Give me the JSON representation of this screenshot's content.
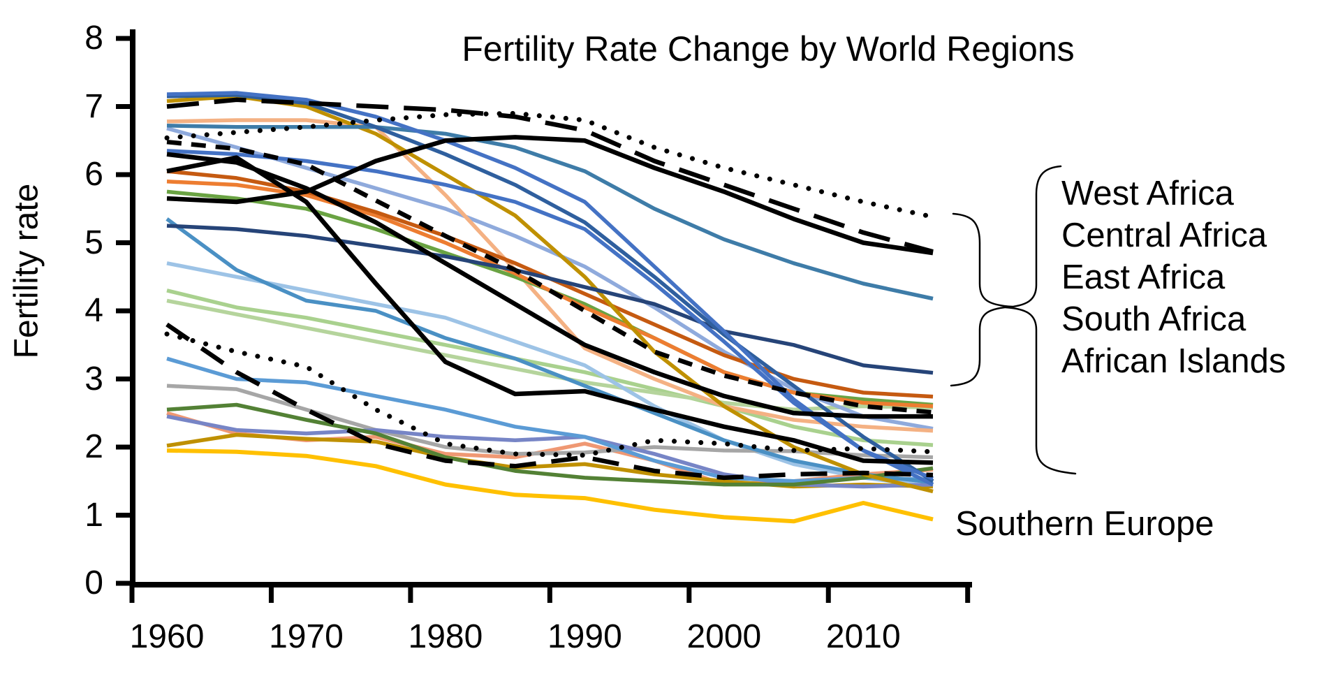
{
  "title": "Fertility Rate Change by World Regions",
  "y_axis": {
    "label": "Fertility rate",
    "tick_labels": [
      "0",
      "1",
      "2",
      "3",
      "4",
      "5",
      "6",
      "7",
      "8"
    ],
    "min": 0,
    "max": 8
  },
  "x_axis": {
    "tick_labels": [
      "1960",
      "1970",
      "1980",
      "1990",
      "2000",
      "2010"
    ]
  },
  "annotations": {
    "africa_group_labels": [
      "West Africa",
      "Central Africa",
      "East Africa",
      "South Africa",
      "African Islands"
    ],
    "southern_europe_label": "Southern Europe",
    "braces": "two facing curly braces link the highlighted black lines to the five Africa labels"
  },
  "chart_data": {
    "type": "line",
    "title": "Fertility Rate Change by World Regions",
    "xlabel": "",
    "ylabel": "Fertility rate",
    "ylim": [
      0,
      8
    ],
    "grid": false,
    "legend_position": "none",
    "x": [
      1960,
      1965,
      1970,
      1975,
      1980,
      1985,
      1990,
      1995,
      2000,
      2005,
      2010,
      2015
    ],
    "x_ticks_shown": [
      1960,
      1970,
      1980,
      1990,
      2000,
      2010
    ],
    "note": "Black lines (assorted dash patterns) are the African regions named by the brace callout; the yellow line is Southern Europe; other colored lines are unlabeled world regions.",
    "series": [
      {
        "id": "region-light-green",
        "color": "#A9D18E",
        "width": 5.5,
        "dash": null,
        "values": [
          4.3,
          4.05,
          3.9,
          3.7,
          3.5,
          3.3,
          3.1,
          2.85,
          2.6,
          2.3,
          2.1,
          2.03
        ]
      },
      {
        "id": "region-pale-green",
        "color": "#B5D49C",
        "width": 5.5,
        "dash": null,
        "values": [
          4.15,
          3.95,
          3.75,
          3.55,
          3.35,
          3.15,
          2.95,
          2.8,
          2.65,
          2.55,
          2.6,
          2.58
        ]
      },
      {
        "id": "region-light-blue",
        "color": "#9DC3E6",
        "width": 5.5,
        "dash": null,
        "values": [
          4.7,
          4.5,
          4.3,
          4.1,
          3.9,
          3.55,
          3.2,
          2.6,
          2.1,
          1.75,
          1.55,
          1.42
        ]
      },
      {
        "id": "region-periwinkle",
        "color": "#8FAADC",
        "width": 5.5,
        "dash": null,
        "values": [
          6.68,
          6.4,
          6.1,
          5.8,
          5.5,
          5.1,
          4.65,
          4.05,
          3.4,
          2.85,
          2.45,
          2.27
        ]
      },
      {
        "id": "region-salmon",
        "color": "#F4B183",
        "width": 5.5,
        "dash": null,
        "values": [
          6.78,
          6.8,
          6.8,
          6.7,
          5.7,
          4.6,
          3.45,
          3.0,
          2.6,
          2.4,
          2.3,
          2.24
        ]
      },
      {
        "id": "region-salmon-2",
        "color": "#EF9873",
        "width": 5.5,
        "dash": null,
        "values": [
          2.5,
          2.2,
          2.1,
          2.15,
          1.9,
          1.85,
          2.05,
          1.8,
          1.45,
          1.5,
          1.6,
          1.67
        ]
      },
      {
        "id": "region-gray",
        "color": "#A6A6A6",
        "width": 5.5,
        "dash": null,
        "values": [
          2.9,
          2.85,
          2.55,
          2.25,
          2.0,
          1.9,
          1.92,
          2.0,
          1.95,
          1.94,
          1.88,
          1.85
        ]
      },
      {
        "id": "region-gold-low",
        "color": "#BF9000",
        "width": 5.5,
        "dash": null,
        "values": [
          2.02,
          2.18,
          2.12,
          2.08,
          1.85,
          1.7,
          1.75,
          1.6,
          1.5,
          1.42,
          1.45,
          1.42
        ]
      },
      {
        "id": "region-violet-blue",
        "color": "#7785C6",
        "width": 5.5,
        "dash": null,
        "values": [
          2.45,
          2.25,
          2.2,
          2.25,
          2.15,
          2.1,
          2.15,
          1.9,
          1.6,
          1.45,
          1.42,
          1.45
        ]
      },
      {
        "id": "region-blue-bright",
        "color": "#5B9BD5",
        "width": 5.5,
        "dash": null,
        "values": [
          3.3,
          3.0,
          2.95,
          2.75,
          2.55,
          2.3,
          2.15,
          1.8,
          1.55,
          1.5,
          1.55,
          1.52
        ]
      },
      {
        "id": "region-blue-steep",
        "color": "#4A90C4",
        "width": 5.5,
        "dash": null,
        "values": [
          5.35,
          4.6,
          4.15,
          4.0,
          3.6,
          3.3,
          2.9,
          2.5,
          2.1,
          1.8,
          1.6,
          1.48
        ]
      },
      {
        "id": "region-green",
        "color": "#6AA343",
        "width": 5.5,
        "dash": null,
        "values": [
          5.75,
          5.65,
          5.5,
          5.2,
          4.85,
          4.5,
          4.1,
          3.6,
          3.1,
          2.8,
          2.7,
          2.62
        ]
      },
      {
        "id": "region-dark-green",
        "color": "#538135",
        "width": 5.5,
        "dash": null,
        "values": [
          2.55,
          2.62,
          2.4,
          2.2,
          1.85,
          1.65,
          1.55,
          1.5,
          1.45,
          1.45,
          1.55,
          1.69
        ]
      },
      {
        "id": "region-orange",
        "color": "#ED7D31",
        "width": 5.5,
        "dash": null,
        "values": [
          5.9,
          5.85,
          5.7,
          5.4,
          5.0,
          4.55,
          4.05,
          3.6,
          3.1,
          2.8,
          2.65,
          2.6
        ]
      },
      {
        "id": "region-dark-orange",
        "color": "#C55A11",
        "width": 5.5,
        "dash": null,
        "values": [
          6.05,
          5.95,
          5.75,
          5.45,
          5.1,
          4.7,
          4.25,
          3.8,
          3.35,
          3.0,
          2.8,
          2.74
        ]
      },
      {
        "id": "region-gold-high",
        "color": "#BF9000",
        "width": 5.5,
        "dash": null,
        "values": [
          7.08,
          7.15,
          7.0,
          6.6,
          6.0,
          5.4,
          4.5,
          3.4,
          2.6,
          2.0,
          1.6,
          1.35
        ]
      },
      {
        "id": "region-navy",
        "color": "#264478",
        "width": 5.5,
        "dash": null,
        "values": [
          5.25,
          5.2,
          5.1,
          4.95,
          4.8,
          4.6,
          4.35,
          4.1,
          3.7,
          3.5,
          3.2,
          3.09
        ]
      },
      {
        "id": "region-teal-blue",
        "color": "#3E7CA8",
        "width": 5.5,
        "dash": null,
        "values": [
          6.72,
          6.7,
          6.7,
          6.7,
          6.6,
          6.4,
          6.05,
          5.5,
          5.05,
          4.7,
          4.4,
          4.18
        ]
      },
      {
        "id": "region-blue-3",
        "color": "#4472C4",
        "width": 5.5,
        "dash": null,
        "values": [
          6.35,
          6.3,
          6.2,
          6.05,
          5.85,
          5.6,
          5.2,
          4.4,
          3.55,
          2.65,
          1.95,
          1.45
        ]
      },
      {
        "id": "region-blue-2",
        "color": "#2F5F9E",
        "width": 5.5,
        "dash": null,
        "values": [
          7.15,
          7.17,
          7.05,
          6.7,
          6.3,
          5.85,
          5.3,
          4.5,
          3.65,
          2.9,
          2.15,
          1.5
        ]
      },
      {
        "id": "region-blue-1",
        "color": "#4472C4",
        "width": 5.5,
        "dash": null,
        "values": [
          7.18,
          7.2,
          7.1,
          6.85,
          6.5,
          6.1,
          5.6,
          4.65,
          3.7,
          2.7,
          1.95,
          1.54
        ]
      },
      {
        "id": "southern-europe",
        "label": "Southern Europe",
        "color": "#FFC000",
        "width": 6,
        "dash": null,
        "values": [
          1.95,
          1.93,
          1.87,
          1.72,
          1.45,
          1.3,
          1.25,
          1.08,
          0.97,
          0.91,
          1.18,
          0.94
        ]
      },
      {
        "id": "africa-dotted-low",
        "color": "#000000",
        "width": 7,
        "dash": "0.1 19",
        "cap": "round",
        "values": [
          3.66,
          3.4,
          3.18,
          2.55,
          2.05,
          1.9,
          1.88,
          2.1,
          2.05,
          1.95,
          1.98,
          1.93
        ]
      },
      {
        "id": "africa-dashdot-low",
        "color": "#000000",
        "width": 6.5,
        "dash": "38 22",
        "values": [
          3.8,
          3.1,
          2.55,
          2.05,
          1.8,
          1.72,
          1.85,
          1.65,
          1.55,
          1.6,
          1.62,
          1.59
        ]
      },
      {
        "id": "africa-solid-plunge",
        "color": "#000000",
        "width": 6.5,
        "dash": null,
        "values": [
          6.05,
          6.25,
          5.6,
          4.4,
          3.25,
          2.78,
          2.82,
          2.55,
          2.3,
          2.1,
          1.8,
          1.77
        ]
      },
      {
        "id": "africa-solid-steady",
        "color": "#000000",
        "width": 6.5,
        "dash": null,
        "values": [
          6.3,
          6.18,
          5.8,
          5.3,
          4.7,
          4.1,
          3.5,
          3.1,
          2.75,
          2.5,
          2.45,
          2.45
        ]
      },
      {
        "id": "africa-short-dash",
        "color": "#000000",
        "width": 6.5,
        "dash": "21 14",
        "values": [
          6.48,
          6.38,
          6.15,
          5.62,
          5.1,
          4.6,
          4.0,
          3.4,
          3.05,
          2.8,
          2.6,
          2.51
        ]
      },
      {
        "id": "africa-solid-rise",
        "color": "#000000",
        "width": 6.5,
        "dash": null,
        "values": [
          5.65,
          5.6,
          5.75,
          6.2,
          6.5,
          6.55,
          6.5,
          6.1,
          5.75,
          5.35,
          5.0,
          4.85
        ]
      },
      {
        "id": "africa-dotted-top",
        "color": "#000000",
        "width": 7,
        "dash": "0.1 19",
        "cap": "round",
        "values": [
          6.54,
          6.62,
          6.7,
          6.8,
          6.88,
          6.9,
          6.8,
          6.4,
          6.1,
          5.85,
          5.6,
          5.38
        ]
      },
      {
        "id": "africa-long-dash",
        "color": "#000000",
        "width": 6.5,
        "dash": "46 22",
        "values": [
          7.0,
          7.1,
          7.05,
          7.0,
          6.95,
          6.85,
          6.65,
          6.2,
          5.85,
          5.5,
          5.15,
          4.87
        ]
      }
    ]
  }
}
